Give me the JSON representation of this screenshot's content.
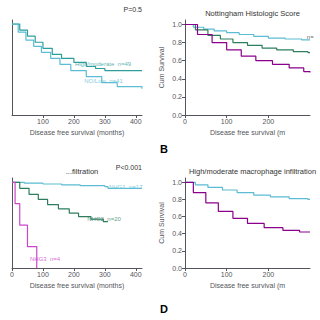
{
  "chart_data": [
    {
      "type": "step",
      "annotations": [
        {
          "text": "P=0.5"
        },
        {
          "text": "High/moderate  n=49",
          "color": "#2e9e9a",
          "x": 200,
          "y": 0.8
        },
        {
          "text": "NO/Low  n=41",
          "color": "#5bbcd4",
          "x": 230,
          "y": 0.72
        }
      ],
      "xlabel": "Disease free survival (months)",
      "xlim": [
        0,
        420
      ],
      "ylim": [
        0.55,
        1.02
      ],
      "xticks": [
        100,
        200,
        300,
        400
      ],
      "tick_labels": "x",
      "grid": false,
      "series": [
        {
          "color": "#2e9e9a",
          "x": [
            0,
            25,
            50,
            75,
            100,
            130,
            160,
            200,
            240,
            270,
            300,
            360,
            420
          ],
          "values": [
            1.0,
            0.97,
            0.94,
            0.91,
            0.88,
            0.85,
            0.83,
            0.81,
            0.79,
            0.78,
            0.77,
            0.77,
            0.77
          ]
        },
        {
          "color": "#5bbcd4",
          "x": [
            0,
            20,
            45,
            70,
            95,
            125,
            155,
            190,
            240,
            290,
            340,
            420
          ],
          "values": [
            1.0,
            0.96,
            0.92,
            0.89,
            0.86,
            0.83,
            0.8,
            0.77,
            0.74,
            0.71,
            0.69,
            0.68
          ]
        }
      ]
    },
    {
      "type": "step",
      "title": "Nottingham Histologic Score",
      "annotations": [
        {
          "text": "n=",
          "color": "#333333",
          "x": 290,
          "y": 0.86
        }
      ],
      "xlabel": "Disease free survival (m",
      "ylabel": "Cum Survival",
      "xlim": [
        0,
        300
      ],
      "ylim": [
        0.0,
        1.05
      ],
      "xticks": [
        0,
        100,
        200
      ],
      "yticks": [
        {
          "value": 0,
          "label": "0.0"
        },
        0.2,
        0.4,
        0.6,
        0.8,
        {
          "value": 1,
          "label": "1.0"
        }
      ],
      "grid": false,
      "series": [
        {
          "color": "#5bbcd4",
          "x": [
            0,
            20,
            45,
            70,
            100,
            130,
            165,
            200,
            240,
            280,
            300
          ],
          "values": [
            1.0,
            0.97,
            0.95,
            0.93,
            0.91,
            0.89,
            0.87,
            0.85,
            0.84,
            0.83,
            0.83
          ]
        },
        {
          "color": "#2e7d5e",
          "x": [
            0,
            25,
            55,
            85,
            115,
            150,
            185,
            220,
            260,
            295,
            300
          ],
          "values": [
            1.0,
            0.94,
            0.88,
            0.84,
            0.8,
            0.77,
            0.74,
            0.72,
            0.7,
            0.69,
            0.69
          ]
        },
        {
          "color": "#8B008B",
          "x": [
            0,
            30,
            65,
            100,
            135,
            170,
            210,
            250,
            285,
            300
          ],
          "values": [
            1.0,
            0.89,
            0.8,
            0.72,
            0.65,
            0.6,
            0.56,
            0.52,
            0.48,
            0.47
          ]
        }
      ]
    },
    {
      "type": "step",
      "title": "...filtration",
      "annotations": [
        {
          "text": "P<0.001"
        },
        {
          "text": "NHG1  n=17",
          "color": "#5bbcd4",
          "x": 310,
          "y": 0.95
        },
        {
          "text": "NHG2  n=20",
          "color": "#2e7d5e",
          "x": 240,
          "y": 0.57
        },
        {
          "text": "NHG3  n=4",
          "color": "#cc44cc",
          "x": 55,
          "y": 0.1
        }
      ],
      "xlabel": "Disease free survival (months)",
      "xlim": [
        0,
        420
      ],
      "ylim": [
        0.0,
        1.05
      ],
      "xticks": [
        0,
        100,
        200,
        300,
        400
      ],
      "tick_labels": "x",
      "grid": false,
      "series": [
        {
          "color": "#5bbcd4",
          "x": [
            0,
            40,
            100,
            160,
            220,
            300,
            310,
            420
          ],
          "values": [
            1.0,
            0.99,
            0.98,
            0.97,
            0.96,
            0.95,
            0.93,
            0.93
          ]
        },
        {
          "color": "#2e7d5e",
          "x": [
            0,
            25,
            55,
            85,
            115,
            150,
            185,
            215,
            255,
            295,
            310
          ],
          "values": [
            1.0,
            0.93,
            0.86,
            0.8,
            0.74,
            0.69,
            0.64,
            0.6,
            0.57,
            0.54,
            0.54
          ]
        },
        {
          "color": "#cc44cc",
          "x": [
            0,
            10,
            25,
            50,
            80
          ],
          "values": [
            1.0,
            0.75,
            0.5,
            0.25,
            0.0
          ]
        }
      ]
    },
    {
      "type": "step",
      "title": "High/moderate macrophage infiltration",
      "xlabel": "Disease free survival (m",
      "ylabel": "Cum Survival",
      "xlim": [
        0,
        300
      ],
      "ylim": [
        0.0,
        1.05
      ],
      "xticks": [
        0,
        100,
        200
      ],
      "yticks": [
        {
          "value": 0,
          "label": "0.0"
        },
        0.2,
        0.4,
        0.6,
        0.8,
        {
          "value": 1,
          "label": "1.0"
        }
      ],
      "grid": false,
      "series": [
        {
          "color": "#5bbcd4",
          "x": [
            0,
            25,
            55,
            90,
            125,
            165,
            205,
            250,
            295,
            300
          ],
          "values": [
            1.0,
            0.97,
            0.94,
            0.91,
            0.88,
            0.85,
            0.83,
            0.81,
            0.8,
            0.8
          ]
        },
        {
          "color": "#8B008B",
          "x": [
            0,
            20,
            50,
            80,
            115,
            150,
            190,
            235,
            275,
            300
          ],
          "values": [
            1.0,
            0.88,
            0.76,
            0.66,
            0.58,
            0.52,
            0.47,
            0.44,
            0.42,
            0.42
          ]
        }
      ]
    }
  ],
  "annotations": [
    {
      "text": "B"
    },
    {
      "text": "D"
    }
  ]
}
